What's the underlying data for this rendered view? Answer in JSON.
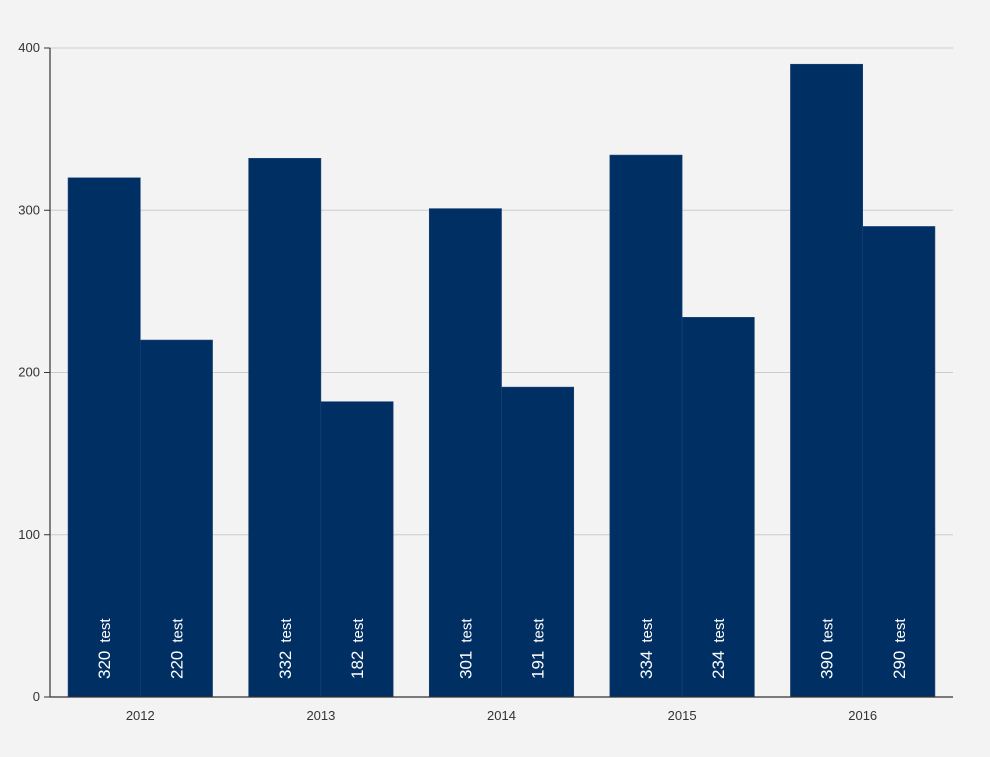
{
  "chart_data": {
    "type": "bar",
    "categories": [
      "2012",
      "2013",
      "2014",
      "2015",
      "2016"
    ],
    "series": [
      {
        "values": [
          320,
          332,
          301,
          334,
          390
        ]
      },
      {
        "values": [
          220,
          182,
          191,
          234,
          290
        ]
      }
    ],
    "data_labels": {
      "suffix": "test",
      "series_0": [
        "320",
        "332",
        "301",
        "334",
        "390"
      ],
      "series_1": [
        "220",
        "182",
        "191",
        "234",
        "290"
      ]
    },
    "ylim": [
      0,
      400
    ],
    "yticks": [
      "0",
      "100",
      "200",
      "300",
      "400"
    ],
    "grid": true,
    "title": "",
    "xlabel": "",
    "ylabel": ""
  },
  "colors": {
    "background": "#f3f3f3",
    "bar": "#002f63",
    "gridline": "#cccccc",
    "axis": "#333333",
    "label": "#ffffff"
  }
}
